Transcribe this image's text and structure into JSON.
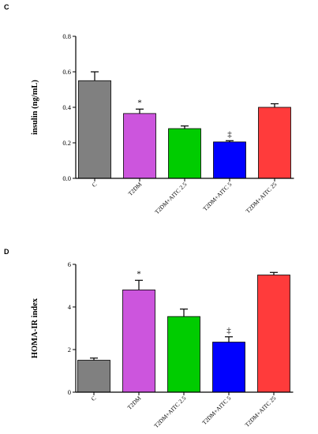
{
  "colors": {
    "C": "#808080",
    "T2DM": "#cc55dd",
    "T2DM+AITC 2.5": "#00cc00",
    "T2DM+AITC 5": "#0000ff",
    "T2DM+AITC 25": "#ff3b3b"
  },
  "chart_data": [
    {
      "panel_label": "C",
      "type": "bar",
      "categories": [
        "C",
        "T2DM",
        "T2DM+AITC 2.5",
        "T2DM+AITC 5",
        "T2DM+AITC 25"
      ],
      "values": [
        0.55,
        0.365,
        0.28,
        0.205,
        0.4
      ],
      "errors": [
        0.05,
        0.025,
        0.015,
        0.007,
        0.02
      ],
      "annotations": [
        "",
        "*",
        "",
        "‡",
        ""
      ],
      "ylabel": "insulin (ng/mL)",
      "ylim": [
        0,
        0.8
      ],
      "yticks": [
        0.0,
        0.2,
        0.4,
        0.6,
        0.8
      ],
      "ytick_labels": [
        "0.0",
        "0.2",
        "0.4",
        "0.6",
        "0.8"
      ]
    },
    {
      "panel_label": "D",
      "type": "bar",
      "categories": [
        "C",
        "T2DM",
        "T2DM+AITC 2.5",
        "T2DM+AITC 5",
        "T2DM+AITC 25"
      ],
      "values": [
        1.5,
        4.8,
        3.55,
        2.35,
        5.5
      ],
      "errors": [
        0.1,
        0.45,
        0.35,
        0.25,
        0.12
      ],
      "annotations": [
        "",
        "*",
        "",
        "‡",
        ""
      ],
      "ylabel": "HOMA-IR index",
      "ylim": [
        0,
        6
      ],
      "yticks": [
        0,
        2,
        4,
        6
      ],
      "ytick_labels": [
        "0",
        "2",
        "4",
        "6"
      ]
    }
  ]
}
